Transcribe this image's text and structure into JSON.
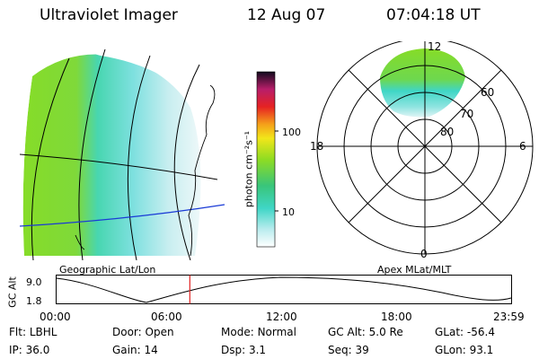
{
  "header": {
    "title": "Ultraviolet Imager",
    "date": "12 Aug 07",
    "time": "07:04:18 UT"
  },
  "colorbar": {
    "unit_label": "photon cm⁻²s⁻¹",
    "ticks": [
      "100",
      "10"
    ]
  },
  "geo_panel": {
    "label": "Geographic Lat/Lon"
  },
  "polar_panel": {
    "label": "Apex MLat/MLT",
    "mlt_labels": {
      "top": "12",
      "left": "18",
      "right": "6",
      "bottom": "0"
    },
    "lat_labels": [
      "60",
      "70",
      "80"
    ]
  },
  "timeline": {
    "ylabel": "GC Alt",
    "yticks": [
      "9.0",
      "1.8"
    ],
    "xticks": [
      "00:00",
      "06:00",
      "12:00",
      "18:00",
      "23:59"
    ],
    "current_fraction": 0.2935
  },
  "status": {
    "row1": [
      {
        "key": "Flt:",
        "value": "LBHL"
      },
      {
        "key": "Door:",
        "value": "Open"
      },
      {
        "key": "Mode:",
        "value": "Normal"
      },
      {
        "key": "GC Alt:",
        "value": "5.0 Re"
      },
      {
        "key": "GLat:",
        "value": "-56.4"
      }
    ],
    "row2": [
      {
        "key": "IP:",
        "value": "36.0"
      },
      {
        "key": "Gain:",
        "value": "14"
      },
      {
        "key": "Dsp:",
        "value": "3.1"
      },
      {
        "key": "Seq:",
        "value": "39"
      },
      {
        "key": "GLon:",
        "value": "93.1"
      }
    ]
  },
  "colors": {
    "aurora_green": "#7ed321",
    "aurora_cyan": "#3fd6c6",
    "aurora_pale": "#bfeef0",
    "current_marker": "#e02020",
    "latlon_line": "#1a3bd6"
  }
}
